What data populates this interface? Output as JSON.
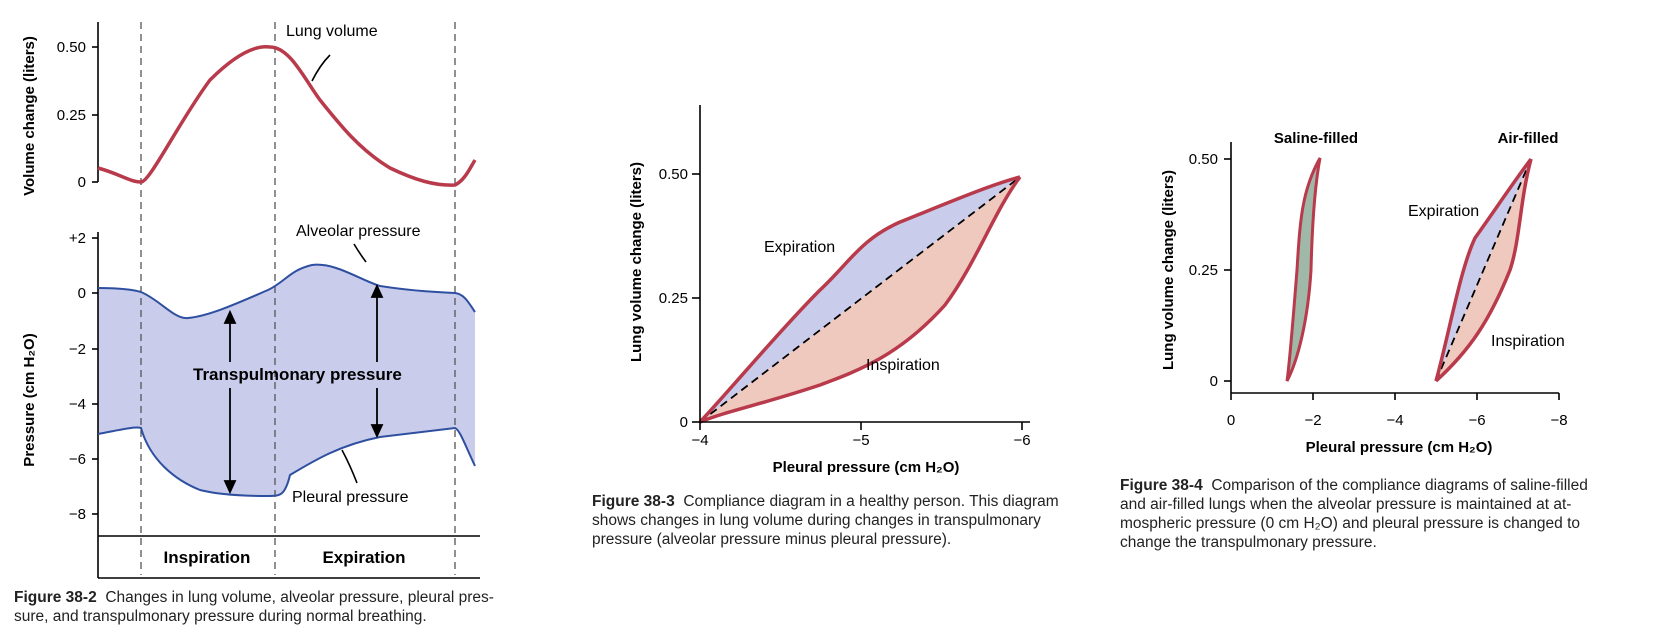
{
  "chart_data": [
    {
      "type": "line",
      "panel": "Figure 38-2 (top)",
      "ylabel": "Volume change (liters)",
      "yticks": [
        "0.50",
        "0.25",
        "0"
      ],
      "ylim": [
        0,
        0.5
      ],
      "series": [
        {
          "name": "Lung volume",
          "x": [
            0.0,
            0.11,
            0.2,
            0.3,
            0.45,
            0.59,
            0.72,
            0.83,
            0.91,
            0.95,
            1.0
          ],
          "values": [
            0.06,
            0.0,
            0.17,
            0.38,
            0.5,
            0.36,
            0.14,
            0.05,
            0.0,
            0.02,
            0.09
          ]
        }
      ],
      "labels": {
        "lung_volume": "Lung volume"
      }
    },
    {
      "type": "area",
      "panel": "Figure 38-2 (bottom)",
      "ylabel": "Pressure (cm H₂O)",
      "yticks": [
        "+2",
        "0",
        "−2",
        "−4",
        "−6",
        "−8"
      ],
      "ylim": [
        -9,
        2
      ],
      "series": [
        {
          "name": "Alveolar pressure",
          "x": [
            0.0,
            0.11,
            0.23,
            0.4,
            0.47,
            0.58,
            0.72,
            0.86,
            0.95,
            1.0
          ],
          "values": [
            0.2,
            0.0,
            -1.0,
            -0.4,
            0.0,
            1.0,
            0.5,
            0.0,
            -0.1,
            -0.6
          ]
        },
        {
          "name": "Pleural pressure",
          "x": [
            0.0,
            0.11,
            0.2,
            0.34,
            0.45,
            0.53,
            0.68,
            0.85,
            0.95,
            1.0
          ],
          "values": [
            -5.2,
            -5.0,
            -6.8,
            -7.5,
            -7.5,
            -6.2,
            -5.3,
            -5.0,
            -5.0,
            -6.4
          ]
        }
      ],
      "labels": {
        "alveolar": "Alveolar pressure",
        "pleural": "Pleural pressure",
        "transpulmonary": "Transpulmonary pressure",
        "inspiration": "Inspiration",
        "expiration": "Expiration"
      }
    },
    {
      "type": "line",
      "panel": "Figure 38-3",
      "xlabel": "Pleural pressure (cm H₂O)",
      "ylabel": "Lung volume change (liters)",
      "xticks": [
        "−4",
        "−5",
        "−6"
      ],
      "yticks": [
        "0.50",
        "0.25",
        "0"
      ],
      "xlim": [
        -4,
        -6
      ],
      "ylim": [
        0,
        0.5
      ],
      "series": [
        {
          "name": "Expiration",
          "x": [
            -4.0,
            -4.3,
            -4.6,
            -5.1,
            -5.6,
            -6.0
          ],
          "values": [
            0.0,
            0.14,
            0.27,
            0.4,
            0.46,
            0.49
          ]
        },
        {
          "name": "Inspiration",
          "x": [
            -4.0,
            -4.4,
            -4.9,
            -5.4,
            -5.7,
            -6.0
          ],
          "values": [
            0.0,
            0.06,
            0.15,
            0.27,
            0.39,
            0.49
          ]
        }
      ],
      "labels": {
        "expiration": "Expiration",
        "inspiration": "Inspiration"
      }
    },
    {
      "type": "line",
      "panel": "Figure 38-4",
      "xlabel": "Pleural pressure (cm H₂O)",
      "ylabel": "Lung volume change (liters)",
      "xticks": [
        "0",
        "−2",
        "−4",
        "−6",
        "−8"
      ],
      "yticks": [
        "0.50",
        "0.25",
        "0"
      ],
      "xlim": [
        0,
        -8
      ],
      "ylim": [
        0,
        0.5
      ],
      "series": [
        {
          "name": "Saline-filled",
          "x": [
            -1.5,
            -1.7,
            -1.8,
            -1.9,
            -2.2,
            -2.0,
            -1.95,
            -1.6,
            -1.5
          ],
          "values": [
            0.01,
            0.15,
            0.3,
            0.45,
            0.5,
            0.45,
            0.3,
            0.15,
            0.01
          ]
        },
        {
          "name": "Air-filled (expiration)",
          "x": [
            -5.2,
            -5.7,
            -6.0,
            -6.5,
            -7.0,
            -7.5
          ],
          "values": [
            0.01,
            0.15,
            0.3,
            0.4,
            0.45,
            0.5
          ]
        },
        {
          "name": "Air-filled (inspiration)",
          "x": [
            -5.2,
            -5.8,
            -6.4,
            -6.9,
            -7.1,
            -7.5
          ],
          "values": [
            0.01,
            0.05,
            0.15,
            0.25,
            0.35,
            0.5
          ]
        }
      ],
      "labels": {
        "saline": "Saline-filled",
        "air": "Air-filled",
        "expiration": "Expiration",
        "inspiration": "Inspiration"
      }
    }
  ],
  "captions": {
    "fig2_label": "Figure 38-2",
    "fig2_line1": "Changes in lung volume, alveolar pressure, pleural pres-",
    "fig2_line2": "sure, and transpulmonary pressure during normal breathing.",
    "fig3_label": "Figure 38-3",
    "fig3_line1": "Compliance diagram in a healthy person. This diagram",
    "fig3_line2": "shows changes in lung volume during changes in transpulmonary",
    "fig3_line3": "pressure (alveolar pressure minus pleural pressure).",
    "fig4_label": "Figure 38-4",
    "fig4_line1": "Comparison of the compliance diagrams of saline-filled",
    "fig4_line2": "and air-filled lungs when the alveolar pressure is maintained at at-",
    "fig4_line3": "mospheric pressure (0 cm H₂O) and pleural pressure is changed to",
    "fig4_line4": "change the transpulmonary pressure."
  },
  "colors": {
    "curve": "#b83a4b",
    "pressure_line": "#2e4fa0",
    "fill_blue": "#c9cdeb",
    "fill_pink": "#efc9bd"
  }
}
